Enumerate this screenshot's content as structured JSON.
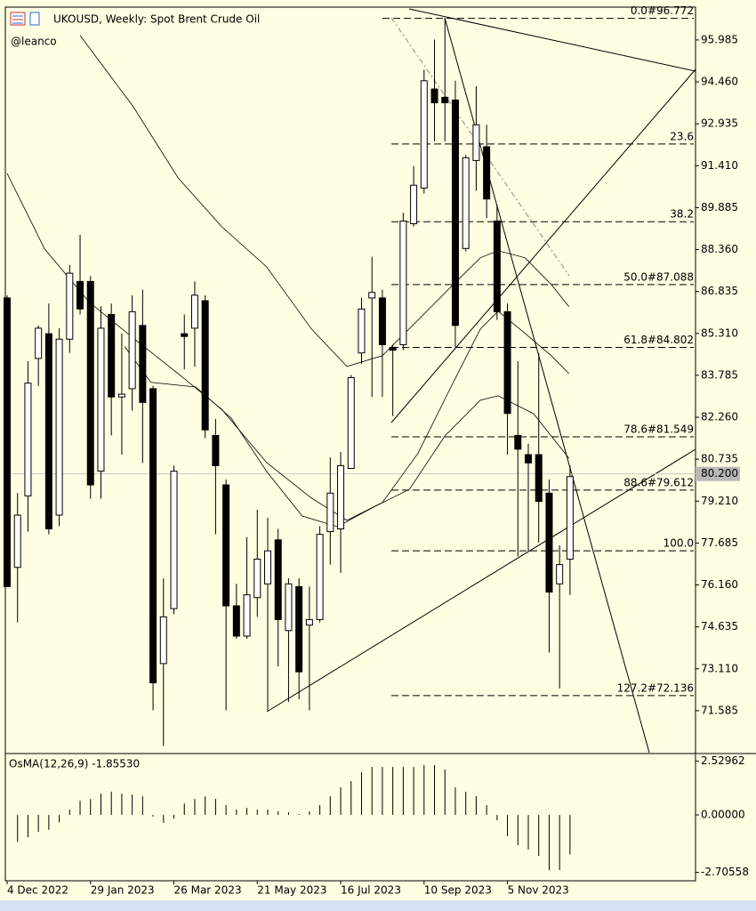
{
  "chart_data": [
    {
      "type": "candlestick",
      "title": "UKOUSD, Weekly:  Spot Brent Crude Oil",
      "subtitle": "@leanco",
      "x": [
        0,
        1,
        2,
        3,
        4,
        5,
        6,
        7,
        8,
        9,
        10,
        11,
        12,
        13,
        14,
        15,
        16,
        17,
        18,
        19,
        20,
        21,
        22,
        23,
        24,
        25,
        26,
        27,
        28,
        29,
        30,
        31,
        32,
        33,
        34,
        35,
        36,
        37,
        38,
        39,
        40,
        41,
        42,
        43,
        44,
        45,
        46,
        47,
        48,
        49,
        50,
        51,
        52,
        53,
        54
      ],
      "open": [
        86.6,
        76.8,
        79.4,
        84.4,
        85.3,
        78.7,
        85.1,
        87.2,
        87.2,
        80.3,
        86.0,
        83.0,
        83.3,
        85.6,
        83.3,
        73.3,
        75.3,
        85.3,
        85.5,
        86.5,
        81.6,
        79.8,
        75.4,
        74.3,
        75.7,
        76.2,
        77.8,
        74.5,
        76.1,
        74.7,
        74.9,
        78.1,
        78.2,
        80.4,
        84.6,
        86.6,
        86.6,
        84.8,
        84.9,
        89.3,
        90.6,
        94.2,
        93.9,
        93.8,
        88.4,
        91.6,
        92.1,
        89.4,
        86.1,
        81.6,
        80.9,
        80.9,
        79.5,
        76.2,
        77.1
      ],
      "high": [
        86.7,
        79.5,
        84.3,
        85.6,
        86.4,
        85.5,
        87.8,
        88.9,
        87.4,
        86.3,
        86.4,
        85.3,
        86.7,
        86.9,
        83.4,
        76.4,
        80.5,
        86.0,
        87.2,
        86.7,
        82.2,
        80.0,
        76.2,
        77.9,
        78.9,
        78.6,
        78.2,
        76.4,
        76.4,
        76.1,
        78.3,
        80.8,
        81.0,
        83.8,
        86.6,
        88.1,
        86.9,
        84.9,
        89.7,
        91.4,
        94.9,
        96.0,
        96.77,
        94.5,
        91.8,
        94.3,
        92.9,
        90.0,
        86.4,
        84.3,
        81.3,
        84.6,
        80.0,
        77.6,
        80.5
      ],
      "low": [
        76.1,
        74.8,
        78.1,
        83.4,
        78.0,
        78.3,
        84.6,
        86.0,
        79.3,
        79.3,
        81.6,
        80.9,
        82.5,
        80.6,
        71.6,
        70.3,
        75.1,
        84.0,
        84.1,
        81.5,
        78.0,
        71.6,
        74.2,
        74.2,
        75.0,
        71.6,
        73.2,
        71.9,
        72.0,
        71.6,
        74.8,
        76.9,
        76.6,
        80.4,
        84.2,
        83.0,
        83.0,
        82.3,
        84.7,
        89.2,
        90.4,
        92.3,
        92.3,
        84.8,
        88.3,
        90.5,
        89.5,
        85.8,
        80.9,
        77.2,
        77.4,
        77.7,
        73.7,
        72.4,
        75.8
      ],
      "close": [
        76.1,
        78.7,
        83.5,
        85.5,
        78.2,
        85.1,
        87.5,
        86.2,
        79.8,
        85.5,
        83.0,
        83.1,
        86.1,
        82.8,
        72.6,
        75.0,
        80.3,
        85.2,
        86.7,
        81.8,
        80.5,
        75.4,
        74.3,
        75.8,
        77.1,
        77.4,
        74.9,
        76.2,
        73.0,
        74.9,
        78.0,
        79.5,
        80.5,
        83.7,
        86.2,
        86.8,
        84.9,
        84.7,
        89.4,
        90.7,
        94.5,
        93.7,
        93.7,
        85.6,
        91.7,
        92.9,
        90.2,
        86.1,
        82.4,
        81.1,
        80.6,
        79.2,
        75.9,
        76.9,
        80.1
      ],
      "lines": [
        {
          "color": "#000000",
          "x": [
            7,
            12.1,
            16.4,
            20.6,
            24.9,
            29.2,
            32.6,
            36,
            39.4,
            42.8,
            45.4,
            47.1,
            49.7,
            52.2,
            53.9
          ],
          "values": [
            96.15,
            93.56,
            90.97,
            89.19,
            87.73,
            85.47,
            84.11,
            84.5,
            85.79,
            87.09,
            88.06,
            88.32,
            88.06,
            87.09,
            86.28
          ]
        },
        {
          "color": "#000000",
          "x": [
            0,
            3.6,
            7.9,
            12.1,
            16.4,
            20.6,
            24.9,
            29.2,
            32.6,
            36,
            39.4,
            42.8,
            45.4,
            47.1,
            49.7,
            52.2,
            53.9
          ],
          "values": [
            91.13,
            88.38,
            86.44,
            85.14,
            83.85,
            82.55,
            80.61,
            79.32,
            78.51,
            79.16,
            80.94,
            83.53,
            85.47,
            86.12,
            85.31,
            84.5,
            83.85
          ]
        },
        {
          "color": "#000000",
          "x": [
            11.3,
            13.8,
            18.1,
            21.5,
            24.9,
            28.3,
            31.7,
            35.2,
            38.6,
            42,
            45.4,
            47.1,
            50.5,
            53.9
          ],
          "values": [
            84.82,
            83.53,
            83.36,
            82.23,
            80.29,
            78.67,
            78.28,
            79.0,
            79.64,
            81.58,
            82.88,
            83.04,
            82.39,
            80.77
          ]
        }
      ],
      "fib_levels": [
        {
          "label": "0.0#96.772",
          "price": 96.772
        },
        {
          "label": "23.6",
          "price": 92.201
        },
        {
          "label": "38.2",
          "price": 89.373
        },
        {
          "label": "50.0#87.088",
          "price": 87.088
        },
        {
          "label": "61.8#84.802",
          "price": 84.802
        },
        {
          "label": "78.6#81.549",
          "price": 81.549
        },
        {
          "label": "88.6#79.612",
          "price": 79.612
        },
        {
          "label": "100.0",
          "price": 77.404
        },
        {
          "label": "127.2#72.136",
          "price": 72.136
        }
      ],
      "last_price": {
        "value": 80.2,
        "label": "80.200"
      },
      "xlim": [
        -0.17,
        66.04
      ],
      "ylim": [
        70.06,
        97.18
      ],
      "xticks": [
        {
          "value": 0,
          "label": "4 Dec 2022"
        },
        {
          "value": 8,
          "label": "29 Jan 2023"
        },
        {
          "value": 16,
          "label": "26 Mar 2023"
        },
        {
          "value": 24,
          "label": "21 May 2023"
        },
        {
          "value": 32,
          "label": "16 Jul 2023"
        },
        {
          "value": 40,
          "label": "10 Sep 2023"
        },
        {
          "value": 48,
          "label": "5 Nov 2023"
        }
      ],
      "yticks": [
        95.985,
        {
          "value": 94.46,
          "label": "94.460"
        },
        92.935,
        {
          "value": 91.41,
          "label": "91.410"
        },
        89.885,
        {
          "value": 88.36,
          "label": "88.360"
        },
        86.835,
        {
          "value": 85.31,
          "label": "85.310"
        },
        83.785,
        {
          "value": 82.26,
          "label": "82.260"
        },
        80.735,
        {
          "value": 79.21,
          "label": "79.210"
        },
        77.685,
        {
          "value": 76.16,
          "label": "76.160"
        },
        74.635,
        {
          "value": 73.11,
          "label": "73.110"
        },
        71.585
      ]
    },
    {
      "type": "histogram",
      "title": "OsMA(12,26,9) -1.85530",
      "color": "#000000",
      "x": [
        1,
        2,
        3,
        4,
        5,
        6,
        7,
        8,
        9,
        10,
        11,
        12,
        13,
        14,
        15,
        16,
        17,
        18,
        19,
        20,
        21,
        22,
        23,
        24,
        25,
        26,
        27,
        28,
        29,
        30,
        31,
        32,
        33,
        34,
        35,
        36,
        37,
        38,
        39,
        40,
        41,
        42,
        43,
        44,
        45,
        46,
        47,
        48,
        49,
        50,
        51,
        52,
        53,
        54
      ],
      "values": [
        -1.27,
        -1.05,
        -0.8,
        -0.7,
        -0.35,
        0.25,
        0.67,
        0.75,
        1.0,
        1.1,
        1.0,
        0.96,
        0.88,
        -0.08,
        -0.38,
        -0.17,
        0.54,
        0.75,
        0.88,
        0.75,
        0.46,
        0.25,
        0.33,
        0.25,
        0.25,
        0.17,
        0.13,
        0.04,
        0.17,
        0.46,
        0.88,
        1.3,
        1.59,
        2.01,
        2.26,
        2.26,
        2.26,
        2.26,
        2.26,
        2.35,
        2.35,
        2.14,
        1.3,
        1.09,
        0.88,
        0.46,
        -0.25,
        -1.0,
        -1.42,
        -1.63,
        -1.93,
        -2.6,
        -2.6,
        -1.86
      ],
      "xlim": [
        -0.17,
        66.04
      ],
      "ylim": [
        -3.1,
        2.85
      ],
      "yticks": [
        2.52962,
        {
          "value": 0,
          "label": "0.00000"
        },
        -2.70558
      ]
    }
  ]
}
